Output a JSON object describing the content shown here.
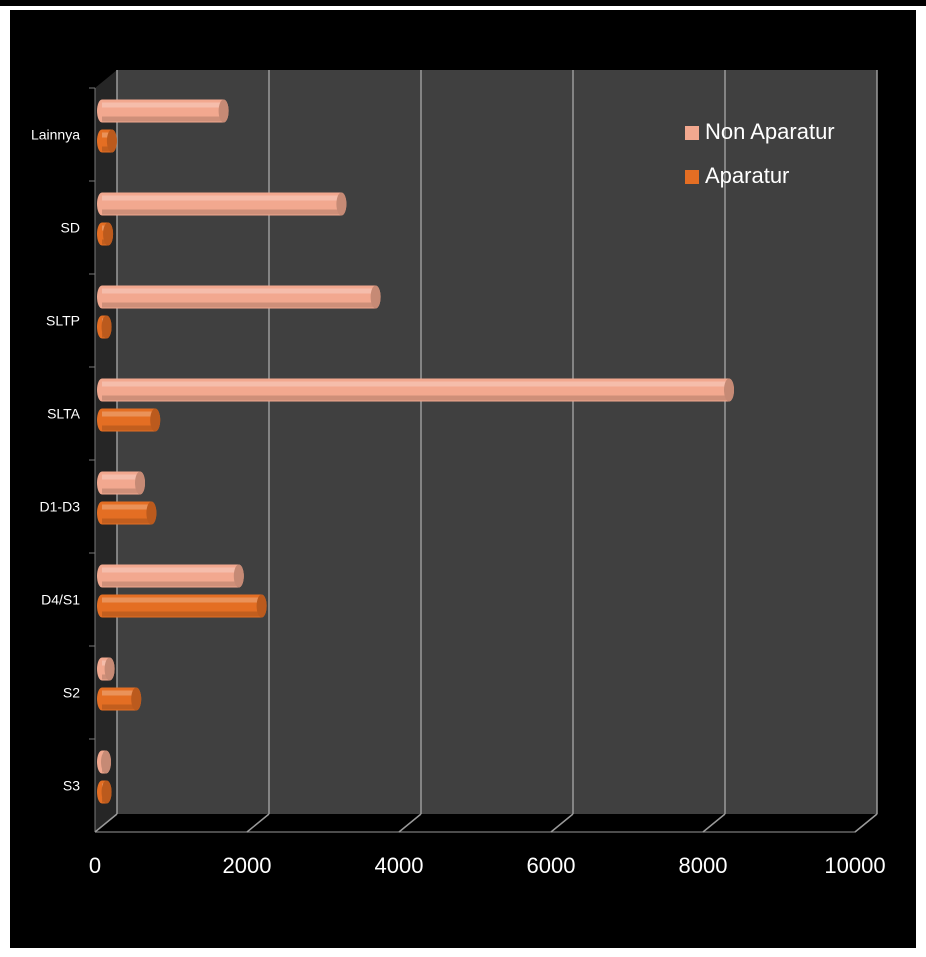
{
  "chart_data": {
    "type": "bar",
    "orientation": "horizontal",
    "style": "3d-cylinder",
    "categories": [
      "Lainnya",
      "SD",
      "SLTP",
      "SLTA",
      "D1-D3",
      "D4/S1",
      "S2",
      "S3"
    ],
    "series": [
      {
        "name": "Non Aparatur",
        "color": "#F2A88F",
        "values": [
          1600,
          3150,
          3600,
          8250,
          500,
          1800,
          100,
          20
        ]
      },
      {
        "name": "Aparatur",
        "color": "#E46E23",
        "values": [
          130,
          80,
          60,
          700,
          650,
          2100,
          450,
          60
        ]
      }
    ],
    "xlim": [
      0,
      10000
    ],
    "xticks": [
      "0",
      "2000",
      "4000",
      "6000",
      "8000",
      "10000"
    ],
    "grid": true,
    "legend_position": "top-right",
    "title": "",
    "xlabel": "",
    "ylabel": ""
  },
  "colors": {
    "background": "#000000",
    "plot_wall": "#404040",
    "side_wall": "#262626",
    "grid": "#9a9a9a",
    "text": "#ffffff"
  }
}
